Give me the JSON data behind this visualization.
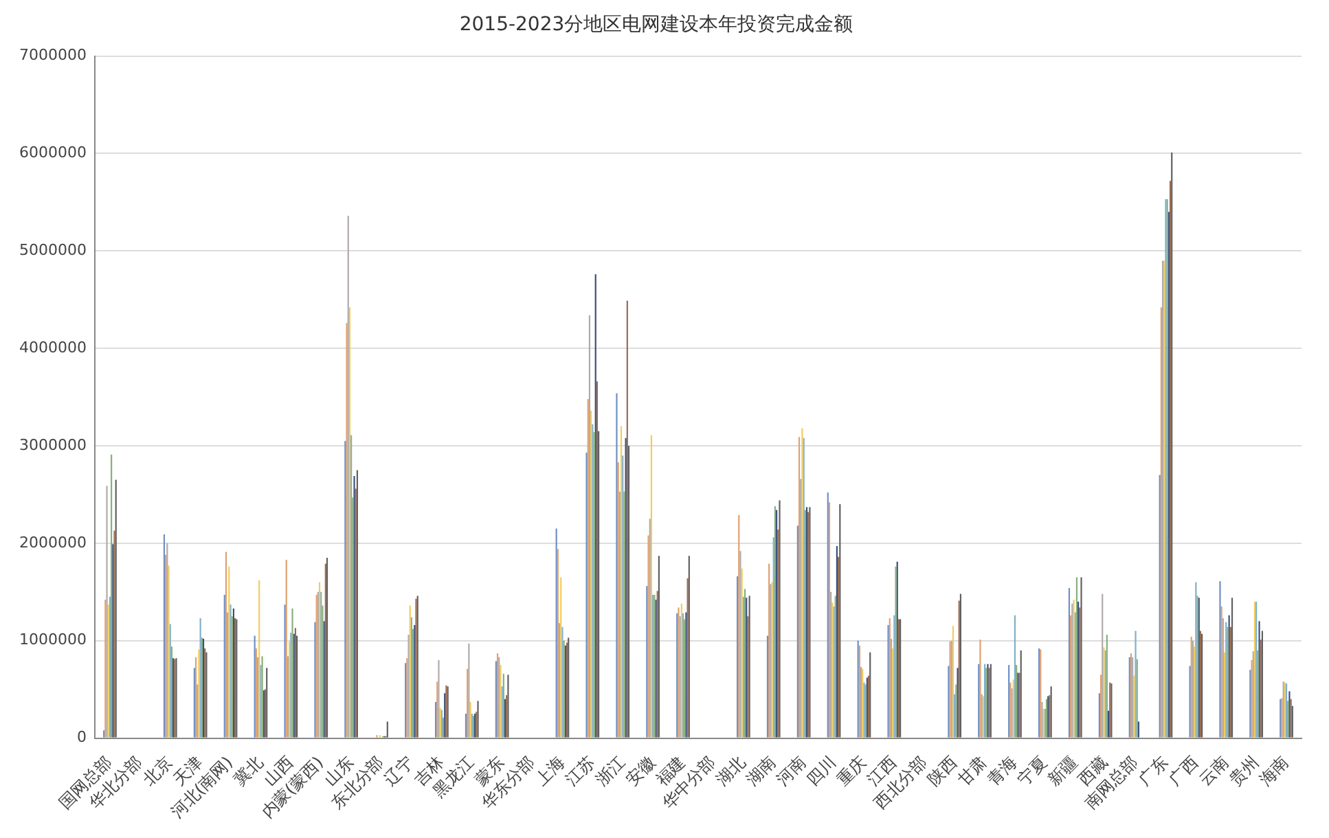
{
  "chart_data": {
    "type": "bar",
    "title": "2015-2023分地区电网建设本年投资完成金额",
    "categories": [
      "国网总部",
      "华北分部",
      "北京",
      "天津",
      "河北(南网)",
      "冀北",
      "山西",
      "内蒙(蒙西)",
      "山东",
      "东北分部",
      "辽宁",
      "吉林",
      "黑龙江",
      "蒙东",
      "华东分部",
      "上海",
      "江苏",
      "浙江",
      "安徽",
      "福建",
      "华中分部",
      "湖北",
      "湖南",
      "河南",
      "四川",
      "重庆",
      "江西",
      "西北分部",
      "陕西",
      "甘肃",
      "青海",
      "宁夏",
      "新疆",
      "西藏",
      "南网总部",
      "广东",
      "广西",
      "云南",
      "贵州",
      "海南"
    ],
    "series": [
      {
        "color": "#6f8fc4",
        "values": [
          80000,
          0,
          2090000,
          720000,
          1470000,
          1050000,
          1370000,
          1190000,
          3050000,
          null,
          770000,
          370000,
          250000,
          790000,
          0,
          2150000,
          2930000,
          3540000,
          1560000,
          1280000,
          0,
          1660000,
          1050000,
          2180000,
          2520000,
          1000000,
          1160000,
          0,
          740000,
          760000,
          750000,
          920000,
          1540000,
          460000,
          830000,
          2700000,
          740000,
          1610000,
          700000,
          400000
        ]
      },
      {
        "color": "#e0a070",
        "values": [
          1420000,
          0,
          1880000,
          830000,
          1910000,
          920000,
          1830000,
          1470000,
          4260000,
          30000,
          820000,
          580000,
          710000,
          870000,
          0,
          1940000,
          3480000,
          2830000,
          2080000,
          1340000,
          0,
          2290000,
          1790000,
          3090000,
          2420000,
          950000,
          1230000,
          0,
          990000,
          1010000,
          570000,
          910000,
          1260000,
          650000,
          870000,
          4420000,
          1040000,
          1350000,
          800000,
          410000
        ]
      },
      {
        "color": "#b0aaa8",
        "values": [
          2590000,
          0,
          2000000,
          550000,
          1290000,
          830000,
          840000,
          1500000,
          5360000,
          null,
          1060000,
          800000,
          970000,
          830000,
          0,
          1180000,
          4340000,
          2530000,
          2250000,
          1250000,
          0,
          1920000,
          1580000,
          2660000,
          1500000,
          730000,
          1020000,
          0,
          1000000,
          450000,
          510000,
          370000,
          1380000,
          1480000,
          830000,
          4900000,
          1000000,
          1230000,
          890000,
          580000
        ]
      },
      {
        "color": "#f2cc5a",
        "values": [
          1370000,
          0,
          1770000,
          910000,
          1760000,
          1620000,
          990000,
          1600000,
          4420000,
          30000,
          1360000,
          310000,
          370000,
          750000,
          0,
          1650000,
          3360000,
          3200000,
          3110000,
          1380000,
          0,
          1740000,
          1600000,
          3180000,
          1390000,
          710000,
          920000,
          0,
          1150000,
          430000,
          600000,
          300000,
          1420000,
          930000,
          640000,
          4900000,
          940000,
          880000,
          1400000,
          570000
        ]
      },
      {
        "color": "#7fb0c8",
        "values": [
          1450000,
          0,
          1170000,
          1230000,
          1370000,
          750000,
          1080000,
          1500000,
          3110000,
          null,
          1240000,
          290000,
          250000,
          530000,
          0,
          1140000,
          3220000,
          2900000,
          1470000,
          1280000,
          0,
          1450000,
          2060000,
          3080000,
          1350000,
          570000,
          1260000,
          0,
          450000,
          760000,
          1260000,
          300000,
          1290000,
          900000,
          1100000,
          5530000,
          1600000,
          1190000,
          1400000,
          560000
        ]
      },
      {
        "color": "#86b07a",
        "values": [
          2910000,
          0,
          940000,
          1030000,
          1250000,
          840000,
          1330000,
          1360000,
          2470000,
          20000,
          1120000,
          210000,
          230000,
          660000,
          0,
          1000000,
          3140000,
          2530000,
          1470000,
          1220000,
          0,
          1530000,
          2380000,
          2340000,
          1460000,
          550000,
          1760000,
          0,
          550000,
          720000,
          750000,
          400000,
          1650000,
          1060000,
          810000,
          5530000,
          1460000,
          1140000,
          900000,
          380000
        ]
      },
      {
        "color": "#3a4f7a",
        "values": [
          1990000,
          0,
          820000,
          1020000,
          1330000,
          490000,
          1070000,
          1200000,
          2690000,
          20000,
          1160000,
          460000,
          250000,
          400000,
          0,
          950000,
          4760000,
          3080000,
          1420000,
          1290000,
          0,
          1440000,
          2340000,
          2370000,
          1970000,
          620000,
          1810000,
          0,
          720000,
          760000,
          670000,
          430000,
          1400000,
          280000,
          170000,
          5400000,
          1440000,
          1260000,
          1200000,
          480000
        ]
      },
      {
        "color": "#9a6a50",
        "values": [
          2130000,
          0,
          810000,
          920000,
          1230000,
          500000,
          1130000,
          1790000,
          2560000,
          20000,
          1430000,
          540000,
          270000,
          440000,
          0,
          980000,
          3660000,
          4490000,
          1510000,
          1640000,
          0,
          1250000,
          2140000,
          2320000,
          1860000,
          640000,
          1220000,
          0,
          1410000,
          720000,
          670000,
          440000,
          1340000,
          570000,
          null,
          5720000,
          1100000,
          1140000,
          1010000,
          400000
        ]
      },
      {
        "color": "#606060",
        "values": [
          2650000,
          0,
          820000,
          880000,
          1220000,
          720000,
          1050000,
          1850000,
          2750000,
          170000,
          1460000,
          530000,
          380000,
          650000,
          0,
          1030000,
          3150000,
          3000000,
          1870000,
          1870000,
          0,
          1460000,
          2440000,
          2370000,
          2400000,
          880000,
          1220000,
          0,
          1480000,
          760000,
          900000,
          530000,
          1650000,
          560000,
          null,
          6010000,
          1070000,
          1440000,
          1100000,
          330000
        ]
      }
    ],
    "ylim": [
      0,
      7000000
    ],
    "yticks": [
      0,
      1000000,
      2000000,
      3000000,
      4000000,
      5000000,
      6000000,
      7000000
    ],
    "grid": "y",
    "legend": false
  }
}
